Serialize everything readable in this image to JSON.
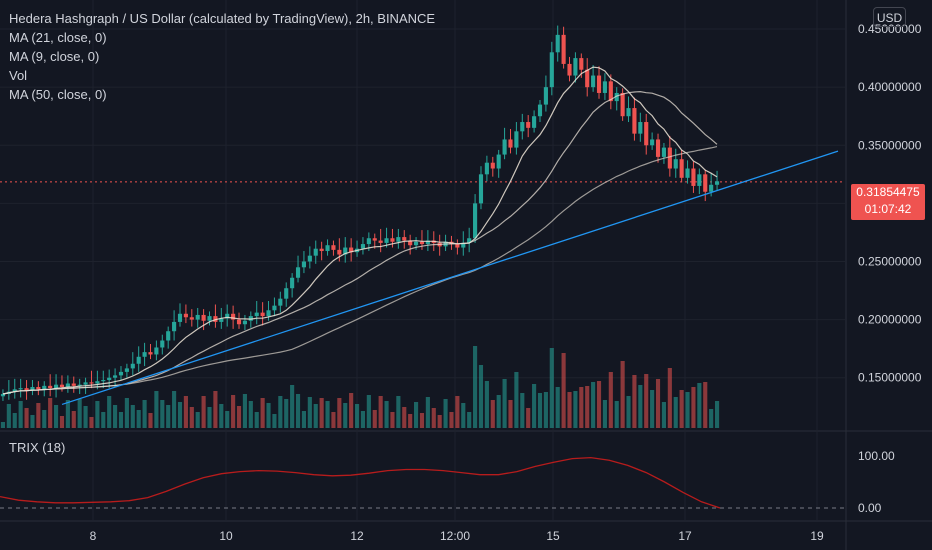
{
  "header": {
    "title": "Hedera Hashgraph / US Dollar (calculated by TradingView), 2h, BINANCE",
    "indicators": [
      "MA (21, close, 0)",
      "MA (9, close, 0)",
      "Vol",
      "MA (50, close, 0)"
    ],
    "currency_button": "USD"
  },
  "trix_panel": {
    "label": "TRIX (18)"
  },
  "price_tag": {
    "price": "0.31854475",
    "countdown": "01:07:42"
  },
  "colors": {
    "background": "#131722",
    "up": "#26a69a",
    "down": "#ef5350",
    "trendline": "#2196f3",
    "ma_fast": "#f0e6d8",
    "ma_mid": "#e8e0d6",
    "trix": "#b71c1c",
    "grid": "#1e222d",
    "text": "#d1d4dc"
  },
  "chart_data": {
    "type": "candlestick",
    "title": "Hedera Hashgraph / US Dollar (calculated by TradingView), 2h, BINANCE",
    "price_axis": {
      "ticks": [
        "0.45000000",
        "0.40000000",
        "0.35000000",
        "0.30000000",
        "0.25000000",
        "0.20000000",
        "0.15000000"
      ],
      "range": [
        0.105,
        0.475
      ]
    },
    "x_axis": {
      "ticks": [
        "8",
        "10",
        "12",
        "12:00",
        "15",
        "17",
        "19"
      ]
    },
    "trix_axis": {
      "ticks": [
        "100.00",
        "0.00"
      ]
    },
    "series": [
      {
        "name": "Candles",
        "type": "candlestick",
        "close": [
          0.136,
          0.138,
          0.14,
          0.141,
          0.139,
          0.142,
          0.14,
          0.143,
          0.141,
          0.144,
          0.142,
          0.145,
          0.143,
          0.144,
          0.146,
          0.145,
          0.147,
          0.148,
          0.15,
          0.152,
          0.155,
          0.158,
          0.162,
          0.168,
          0.172,
          0.17,
          0.176,
          0.182,
          0.19,
          0.198,
          0.205,
          0.202,
          0.2,
          0.204,
          0.199,
          0.203,
          0.198,
          0.201,
          0.205,
          0.2,
          0.196,
          0.199,
          0.203,
          0.206,
          0.203,
          0.208,
          0.212,
          0.218,
          0.227,
          0.236,
          0.245,
          0.25,
          0.255,
          0.261,
          0.259,
          0.264,
          0.26,
          0.256,
          0.262,
          0.258,
          0.261,
          0.265,
          0.27,
          0.268,
          0.266,
          0.27,
          0.267,
          0.271,
          0.268,
          0.264,
          0.267,
          0.265,
          0.268,
          0.266,
          0.263,
          0.267,
          0.265,
          0.262,
          0.266,
          0.27,
          0.3,
          0.325,
          0.335,
          0.33,
          0.342,
          0.355,
          0.348,
          0.362,
          0.37,
          0.365,
          0.375,
          0.385,
          0.4,
          0.43,
          0.445,
          0.42,
          0.41,
          0.425,
          0.415,
          0.4,
          0.41,
          0.395,
          0.405,
          0.388,
          0.395,
          0.375,
          0.382,
          0.36,
          0.37,
          0.35,
          0.355,
          0.34,
          0.348,
          0.33,
          0.338,
          0.322,
          0.33,
          0.315,
          0.325,
          0.31,
          0.316,
          0.319
        ]
      },
      {
        "name": "MA (9, close, 0)"
      },
      {
        "name": "MA (21, close, 0)"
      },
      {
        "name": "MA (50, close, 0)"
      },
      {
        "name": "Vol"
      },
      {
        "name": "TRIX (18)",
        "values": [
          22,
          15,
          12,
          10,
          10,
          11,
          12,
          14,
          20,
          32,
          46,
          58,
          66,
          70,
          72,
          71,
          68,
          64,
          62,
          63,
          67,
          72,
          74,
          74,
          72,
          68,
          64,
          64,
          70,
          80,
          88,
          95,
          97,
          92,
          82,
          68,
          50,
          30,
          12,
          0
        ]
      }
    ],
    "trendline": {
      "from": [
        0,
        0.127
      ],
      "to": [
        1,
        0.345
      ]
    },
    "current_price": 0.31854475,
    "trix_zero_line": 0
  }
}
